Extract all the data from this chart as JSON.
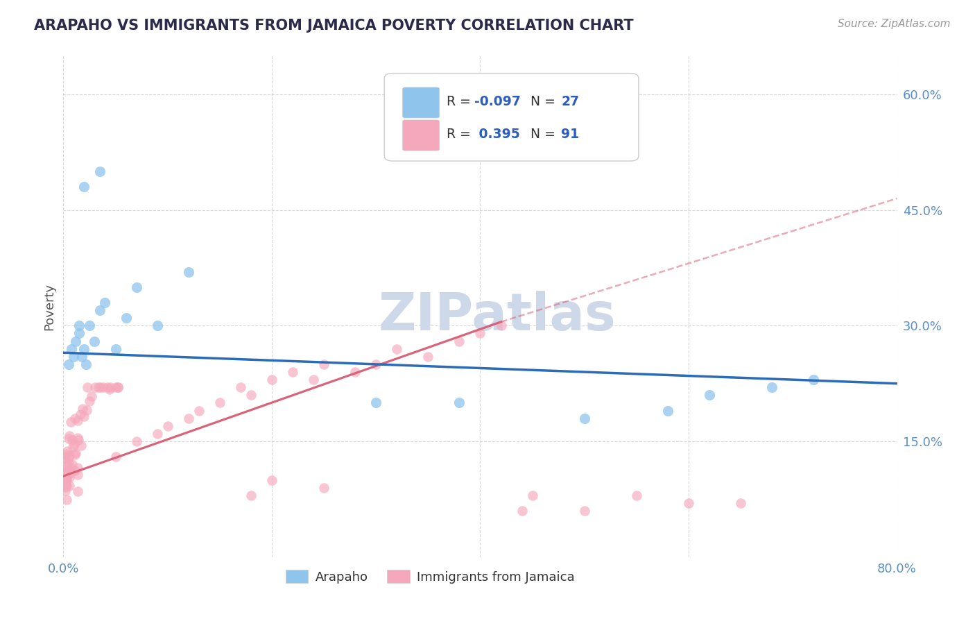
{
  "title": "ARAPAHO VS IMMIGRANTS FROM JAMAICA POVERTY CORRELATION CHART",
  "source": "Source: ZipAtlas.com",
  "ylabel": "Poverty",
  "legend_labels": [
    "Arapaho",
    "Immigrants from Jamaica"
  ],
  "r_arapaho": -0.097,
  "n_arapaho": 27,
  "r_jamaica": 0.395,
  "n_jamaica": 91,
  "xlim": [
    0.0,
    0.8
  ],
  "ylim": [
    0.0,
    0.65
  ],
  "yticks": [
    0.15,
    0.3,
    0.45,
    0.6
  ],
  "ytick_labels": [
    "15.0%",
    "30.0%",
    "45.0%",
    "60.0%"
  ],
  "xtick_positions": [
    0.0,
    0.2,
    0.4,
    0.6,
    0.8
  ],
  "xtick_labels": [
    "0.0%",
    "",
    "",
    "",
    "80.0%"
  ],
  "color_arapaho": "#8fc4ed",
  "color_jamaica": "#f5a8bb",
  "color_line_arapaho": "#2b6cb8",
  "color_line_jamaica": "#d9647a",
  "watermark_color": "#cdd8e8",
  "background_color": "#ffffff",
  "tick_color": "#5b8ec4",
  "legend_text_color_label": "#333333",
  "legend_text_color_value": "#2b5cbf",
  "blue_line_x0": 0.0,
  "blue_line_y0": 0.265,
  "blue_line_x1": 0.8,
  "blue_line_y1": 0.225,
  "pink_line_solid_x0": 0.0,
  "pink_line_solid_y0": 0.105,
  "pink_line_solid_x1": 0.42,
  "pink_line_solid_y1": 0.305,
  "pink_line_dash_x0": 0.42,
  "pink_line_dash_y0": 0.305,
  "pink_line_dash_x1": 0.8,
  "pink_line_dash_y1": 0.465
}
